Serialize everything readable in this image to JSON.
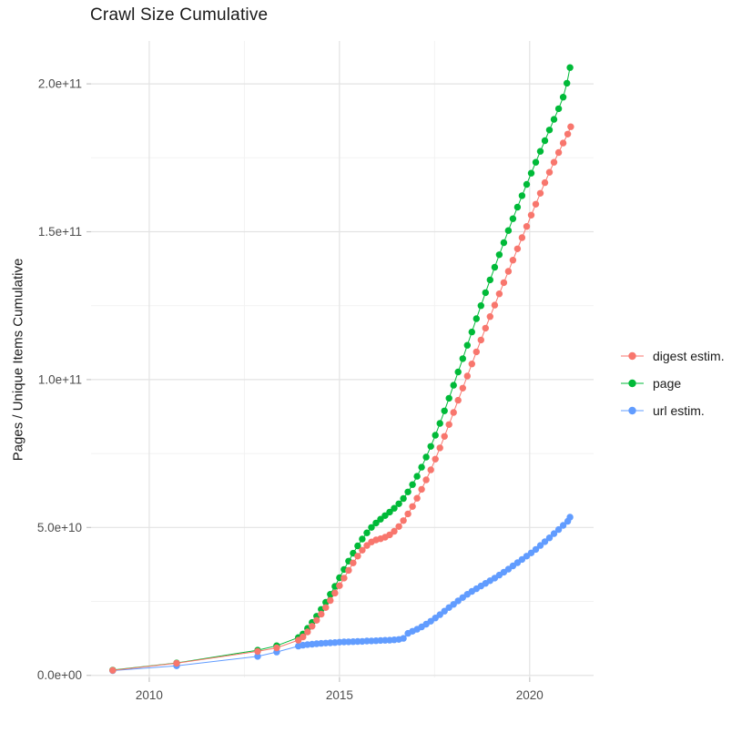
{
  "chart_data": {
    "type": "scatter",
    "title": "Crawl Size Cumulative",
    "xlabel": "",
    "ylabel": "Pages / Unique Items Cumulative",
    "grid": "major+minor",
    "legend_position": "right",
    "background_color": "#FFFFFF",
    "grid_major_color": "#E3E3E3",
    "grid_minor_color": "#F2F2F2",
    "tick_color": "#C6C6C6",
    "tick_label_color": "#4D4D4D",
    "xlim": [
      2008.47,
      2021.68
    ],
    "ylim_e9": [
      -0.7,
      214.5
    ],
    "y_unit_multiplier": 1000000000.0,
    "x_tick_values": [
      2010,
      2015,
      2020
    ],
    "x_tick_labels": [
      "2010",
      "2015",
      "2020"
    ],
    "x_minor_ticks": [
      2012.5,
      2017.5
    ],
    "y_tick_values_e9": [
      0,
      50,
      100,
      150,
      200
    ],
    "y_tick_labels": [
      "0.0e+00",
      "5.0e+10",
      "1.0e+11",
      "1.5e+11",
      "2.0e+11"
    ],
    "y_minor_ticks_e9": [
      25,
      75,
      125,
      175
    ],
    "series": [
      {
        "name": "digest estim.",
        "color": "#F8766D",
        "points_year_value_e9": [
          [
            2009.04,
            1.7
          ],
          [
            2010.72,
            4.1
          ],
          [
            2012.85,
            8.1
          ],
          [
            2013.35,
            9.3
          ],
          [
            2013.92,
            11.9
          ],
          [
            2014.04,
            13.0
          ],
          [
            2014.16,
            14.7
          ],
          [
            2014.28,
            16.6
          ],
          [
            2014.4,
            18.6
          ],
          [
            2014.52,
            20.7
          ],
          [
            2014.64,
            22.9
          ],
          [
            2014.76,
            25.3
          ],
          [
            2014.88,
            27.8
          ],
          [
            2015.0,
            30.3
          ],
          [
            2015.12,
            32.9
          ],
          [
            2015.24,
            35.5
          ],
          [
            2015.36,
            38.0
          ],
          [
            2015.48,
            40.3
          ],
          [
            2015.6,
            42.3
          ],
          [
            2015.72,
            43.9
          ],
          [
            2015.84,
            45.1
          ],
          [
            2015.96,
            45.8
          ],
          [
            2016.08,
            46.2
          ],
          [
            2016.2,
            46.7
          ],
          [
            2016.32,
            47.5
          ],
          [
            2016.44,
            48.7
          ],
          [
            2016.56,
            50.3
          ],
          [
            2016.68,
            52.3
          ],
          [
            2016.8,
            54.6
          ],
          [
            2016.92,
            57.1
          ],
          [
            2017.04,
            59.9
          ],
          [
            2017.16,
            62.9
          ],
          [
            2017.28,
            66.1
          ],
          [
            2017.4,
            69.5
          ],
          [
            2017.52,
            73.1
          ],
          [
            2017.64,
            76.9
          ],
          [
            2017.76,
            80.8
          ],
          [
            2017.88,
            84.8
          ],
          [
            2018.0,
            88.9
          ],
          [
            2018.12,
            93.0
          ],
          [
            2018.24,
            97.1
          ],
          [
            2018.36,
            101.2
          ],
          [
            2018.48,
            105.3
          ],
          [
            2018.6,
            109.4
          ],
          [
            2018.72,
            113.4
          ],
          [
            2018.84,
            117.4
          ],
          [
            2018.96,
            121.3
          ],
          [
            2019.08,
            125.2
          ],
          [
            2019.2,
            129.0
          ],
          [
            2019.32,
            132.8
          ],
          [
            2019.44,
            136.6
          ],
          [
            2019.56,
            140.4
          ],
          [
            2019.68,
            144.2
          ],
          [
            2019.8,
            148.0
          ],
          [
            2019.92,
            151.8
          ],
          [
            2020.04,
            155.6
          ],
          [
            2020.16,
            159.3
          ],
          [
            2020.28,
            163.0
          ],
          [
            2020.4,
            166.6
          ],
          [
            2020.52,
            170.1
          ],
          [
            2020.64,
            173.5
          ],
          [
            2020.76,
            176.8
          ],
          [
            2020.88,
            180.0
          ],
          [
            2021.0,
            183.0
          ],
          [
            2021.08,
            185.5
          ]
        ]
      },
      {
        "name": "page",
        "color": "#00BA38",
        "points_year_value_e9": [
          [
            2009.04,
            1.8
          ],
          [
            2010.72,
            4.2
          ],
          [
            2012.85,
            8.5
          ],
          [
            2013.35,
            10.0
          ],
          [
            2013.92,
            12.8
          ],
          [
            2014.04,
            14.0
          ],
          [
            2014.16,
            15.9
          ],
          [
            2014.28,
            17.9
          ],
          [
            2014.4,
            20.0
          ],
          [
            2014.52,
            22.3
          ],
          [
            2014.64,
            24.7
          ],
          [
            2014.76,
            27.4
          ],
          [
            2014.88,
            30.1
          ],
          [
            2015.0,
            33.0
          ],
          [
            2015.12,
            35.8
          ],
          [
            2015.24,
            38.6
          ],
          [
            2015.36,
            41.3
          ],
          [
            2015.48,
            43.8
          ],
          [
            2015.6,
            46.1
          ],
          [
            2015.72,
            48.2
          ],
          [
            2015.84,
            50.0
          ],
          [
            2015.96,
            51.5
          ],
          [
            2016.08,
            52.8
          ],
          [
            2016.2,
            54.0
          ],
          [
            2016.32,
            55.2
          ],
          [
            2016.44,
            56.5
          ],
          [
            2016.56,
            58.0
          ],
          [
            2016.68,
            59.8
          ],
          [
            2016.8,
            62.0
          ],
          [
            2016.92,
            64.5
          ],
          [
            2017.04,
            67.3
          ],
          [
            2017.16,
            70.4
          ],
          [
            2017.28,
            73.8
          ],
          [
            2017.4,
            77.4
          ],
          [
            2017.52,
            81.2
          ],
          [
            2017.64,
            85.2
          ],
          [
            2017.76,
            89.4
          ],
          [
            2017.88,
            93.7
          ],
          [
            2018.0,
            98.1
          ],
          [
            2018.12,
            102.6
          ],
          [
            2018.24,
            107.1
          ],
          [
            2018.36,
            111.6
          ],
          [
            2018.48,
            116.1
          ],
          [
            2018.6,
            120.6
          ],
          [
            2018.72,
            125.0
          ],
          [
            2018.84,
            129.4
          ],
          [
            2018.96,
            133.7
          ],
          [
            2019.08,
            138.0
          ],
          [
            2019.2,
            142.2
          ],
          [
            2019.32,
            146.3
          ],
          [
            2019.44,
            150.4
          ],
          [
            2019.56,
            154.4
          ],
          [
            2019.68,
            158.3
          ],
          [
            2019.8,
            162.2
          ],
          [
            2019.92,
            166.0
          ],
          [
            2020.04,
            169.8
          ],
          [
            2020.16,
            173.5
          ],
          [
            2020.28,
            177.2
          ],
          [
            2020.4,
            180.8
          ],
          [
            2020.52,
            184.4
          ],
          [
            2020.64,
            188.0
          ],
          [
            2020.76,
            191.6
          ],
          [
            2020.88,
            195.5
          ],
          [
            2020.98,
            200.2
          ],
          [
            2021.06,
            205.5
          ]
        ]
      },
      {
        "name": "url estim.",
        "color": "#619CFF",
        "points_year_value_e9": [
          [
            2009.04,
            1.6
          ],
          [
            2010.72,
            3.2
          ],
          [
            2012.85,
            6.4
          ],
          [
            2013.35,
            7.9
          ],
          [
            2013.92,
            9.9
          ],
          [
            2014.04,
            10.2
          ],
          [
            2014.16,
            10.4
          ],
          [
            2014.28,
            10.55
          ],
          [
            2014.4,
            10.7
          ],
          [
            2014.52,
            10.8
          ],
          [
            2014.64,
            10.9
          ],
          [
            2014.76,
            11.0
          ],
          [
            2014.88,
            11.1
          ],
          [
            2015.0,
            11.2
          ],
          [
            2015.12,
            11.3
          ],
          [
            2015.24,
            11.35
          ],
          [
            2015.36,
            11.4
          ],
          [
            2015.48,
            11.45
          ],
          [
            2015.6,
            11.5
          ],
          [
            2015.72,
            11.6
          ],
          [
            2015.84,
            11.65
          ],
          [
            2015.96,
            11.7
          ],
          [
            2016.08,
            11.8
          ],
          [
            2016.2,
            11.85
          ],
          [
            2016.32,
            11.9
          ],
          [
            2016.44,
            12.0
          ],
          [
            2016.56,
            12.15
          ],
          [
            2016.68,
            12.5
          ],
          [
            2016.8,
            14.2
          ],
          [
            2016.92,
            14.9
          ],
          [
            2017.04,
            15.6
          ],
          [
            2017.16,
            16.4
          ],
          [
            2017.28,
            17.3
          ],
          [
            2017.4,
            18.3
          ],
          [
            2017.52,
            19.4
          ],
          [
            2017.64,
            20.5
          ],
          [
            2017.76,
            21.7
          ],
          [
            2017.88,
            22.9
          ],
          [
            2018.0,
            24.0
          ],
          [
            2018.12,
            25.2
          ],
          [
            2018.24,
            26.3
          ],
          [
            2018.36,
            27.4
          ],
          [
            2018.48,
            28.4
          ],
          [
            2018.6,
            29.3
          ],
          [
            2018.72,
            30.2
          ],
          [
            2018.84,
            31.1
          ],
          [
            2018.96,
            32.0
          ],
          [
            2019.08,
            32.9
          ],
          [
            2019.2,
            33.9
          ],
          [
            2019.32,
            34.9
          ],
          [
            2019.44,
            35.9
          ],
          [
            2019.56,
            37.0
          ],
          [
            2019.68,
            38.1
          ],
          [
            2019.8,
            39.2
          ],
          [
            2019.92,
            40.3
          ],
          [
            2020.04,
            41.4
          ],
          [
            2020.16,
            42.6
          ],
          [
            2020.28,
            43.9
          ],
          [
            2020.4,
            45.2
          ],
          [
            2020.52,
            46.5
          ],
          [
            2020.64,
            47.9
          ],
          [
            2020.76,
            49.3
          ],
          [
            2020.88,
            50.7
          ],
          [
            2021.0,
            52.1
          ],
          [
            2021.06,
            53.5
          ]
        ]
      }
    ]
  }
}
